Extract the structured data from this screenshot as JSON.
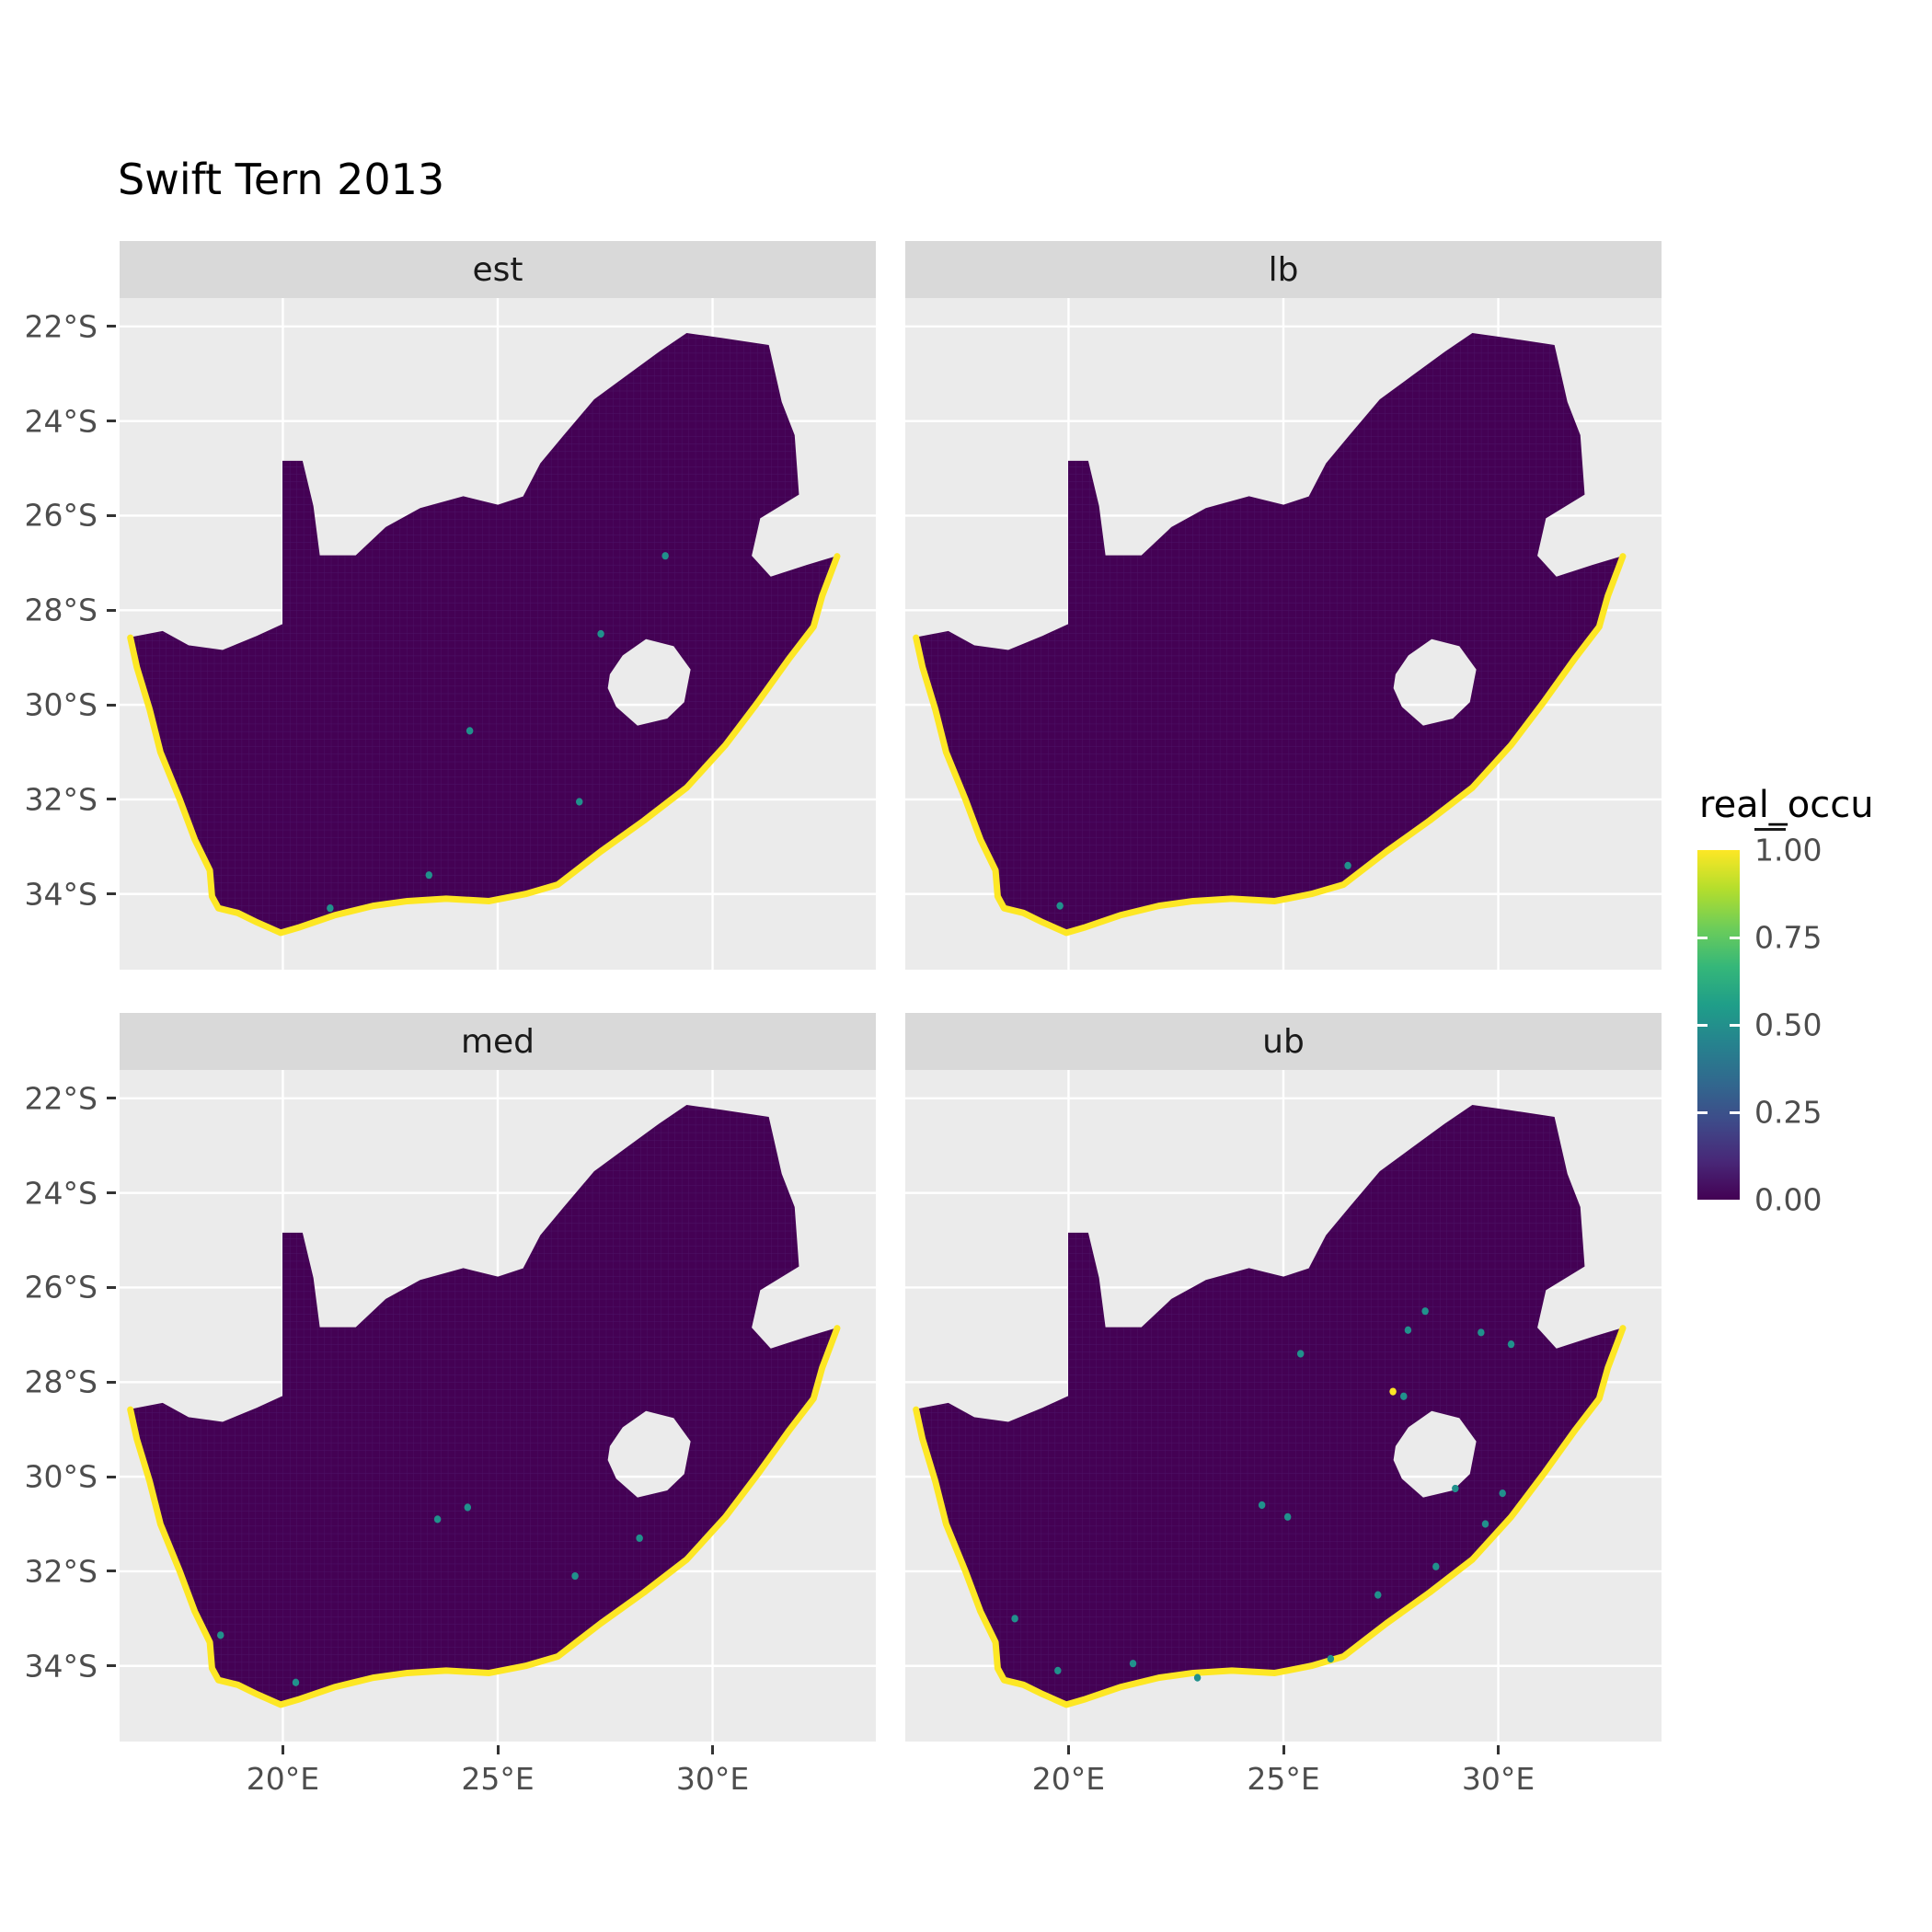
{
  "title": "Swift Tern 2013",
  "facets": [
    {
      "label": "est"
    },
    {
      "label": "lb"
    },
    {
      "label": "med"
    },
    {
      "label": "ub"
    }
  ],
  "axes": {
    "x_ticks": [
      {
        "value": 20,
        "label": "20°E"
      },
      {
        "value": 25,
        "label": "25°E"
      },
      {
        "value": 30,
        "label": "30°E"
      }
    ],
    "y_ticks": [
      {
        "value": 22,
        "label": "22°S"
      },
      {
        "value": 24,
        "label": "24°S"
      },
      {
        "value": 26,
        "label": "26°S"
      },
      {
        "value": 28,
        "label": "28°S"
      },
      {
        "value": 30,
        "label": "30°S"
      },
      {
        "value": 32,
        "label": "32°S"
      },
      {
        "value": 34,
        "label": "34°S"
      }
    ]
  },
  "legend": {
    "title": "real_occu",
    "breaks": [
      {
        "value": 1.0,
        "label": "1.00"
      },
      {
        "value": 0.75,
        "label": "0.75"
      },
      {
        "value": 0.5,
        "label": "0.50"
      },
      {
        "value": 0.25,
        "label": "0.25"
      },
      {
        "value": 0.0,
        "label": "0.00"
      }
    ]
  },
  "colors": {
    "low": "#440154",
    "mid": "#21918c",
    "high": "#fde725",
    "panel_bg": "#ebebeb",
    "strip_bg": "#d9d9d9",
    "grid": "#ffffff",
    "raster_line": "#4c1467",
    "speckle": "#21918c",
    "viridis_stops": [
      "#fde725",
      "#b4de2c",
      "#6dcd59",
      "#35b779",
      "#1f9e89",
      "#26828e",
      "#31688e",
      "#3e4a89",
      "#482878",
      "#440154"
    ]
  },
  "chart_data": {
    "type": "heatmap",
    "subtype": "faceted raster occupancy map (ggplot2 facet_wrap, viridis fill)",
    "title": "Swift Tern 2013",
    "region": "South Africa (with Lesotho hole and eSwatini notch)",
    "facets": [
      "est",
      "lb",
      "med",
      "ub"
    ],
    "fill_variable": "real_occu",
    "fill_range": [
      0,
      1
    ],
    "legend_breaks": [
      0,
      0.25,
      0.5,
      0.75,
      1
    ],
    "palette": "viridis",
    "x_axis": {
      "ticks_deg_E": [
        20,
        25,
        30
      ]
    },
    "y_axis": {
      "ticks_deg_S": [
        22,
        24,
        26,
        28,
        30,
        32,
        34
      ]
    },
    "lon_range_e": [
      16.2,
      33.8
    ],
    "lat_range_s": [
      21.4,
      35.6
    ],
    "summary": "All four facets show the same South Africa raster: interior cells ≈ 0.00 (dark purple), coastal cells ≈ 1.00 (yellow band along the entire coastline), with sparse intermediate (teal) cells; the ub facet shows the most nonzero inland cells, lb the fewest.",
    "outline_lon_latS": [
      [
        16.45,
        28.58
      ],
      [
        17.2,
        28.45
      ],
      [
        17.8,
        28.75
      ],
      [
        18.6,
        28.85
      ],
      [
        19.4,
        28.55
      ],
      [
        20.0,
        28.3
      ],
      [
        20.0,
        24.85
      ],
      [
        20.45,
        24.85
      ],
      [
        20.7,
        25.8
      ],
      [
        20.85,
        26.85
      ],
      [
        21.7,
        26.85
      ],
      [
        22.4,
        26.25
      ],
      [
        23.2,
        25.85
      ],
      [
        24.2,
        25.6
      ],
      [
        25.0,
        25.78
      ],
      [
        25.6,
        25.6
      ],
      [
        26.0,
        24.9
      ],
      [
        26.55,
        24.3
      ],
      [
        27.25,
        23.55
      ],
      [
        28.0,
        23.05
      ],
      [
        28.75,
        22.55
      ],
      [
        29.4,
        22.15
      ],
      [
        30.2,
        22.25
      ],
      [
        31.3,
        22.4
      ],
      [
        31.6,
        23.6
      ],
      [
        31.9,
        24.3
      ],
      [
        32.0,
        25.55
      ],
      [
        31.1,
        26.05
      ],
      [
        30.9,
        26.85
      ],
      [
        31.35,
        27.3
      ],
      [
        32.2,
        27.05
      ],
      [
        32.9,
        26.86
      ],
      [
        32.55,
        27.7
      ],
      [
        32.35,
        28.35
      ],
      [
        31.8,
        29.0
      ],
      [
        31.05,
        29.95
      ],
      [
        30.3,
        30.85
      ],
      [
        29.4,
        31.75
      ],
      [
        28.4,
        32.45
      ],
      [
        27.4,
        33.1
      ],
      [
        26.4,
        33.8
      ],
      [
        25.65,
        34.0
      ],
      [
        24.8,
        34.15
      ],
      [
        23.8,
        34.1
      ],
      [
        22.9,
        34.15
      ],
      [
        22.1,
        34.25
      ],
      [
        21.2,
        34.45
      ],
      [
        20.4,
        34.7
      ],
      [
        19.95,
        34.82
      ],
      [
        19.4,
        34.6
      ],
      [
        18.95,
        34.4
      ],
      [
        18.5,
        34.3
      ],
      [
        18.35,
        34.05
      ],
      [
        18.3,
        33.5
      ],
      [
        17.95,
        32.85
      ],
      [
        17.6,
        32.0
      ],
      [
        17.15,
        31.0
      ],
      [
        16.9,
        30.1
      ],
      [
        16.6,
        29.2
      ],
      [
        16.45,
        28.58
      ]
    ],
    "lesotho_hole_lon_latS": [
      [
        27.6,
        29.35
      ],
      [
        27.9,
        28.95
      ],
      [
        28.45,
        28.6
      ],
      [
        29.1,
        28.75
      ],
      [
        29.5,
        29.25
      ],
      [
        29.35,
        29.95
      ],
      [
        28.95,
        30.3
      ],
      [
        28.25,
        30.45
      ],
      [
        27.75,
        30.05
      ],
      [
        27.55,
        29.65
      ]
    ],
    "coastline_lon_latS": [
      [
        16.45,
        28.58
      ],
      [
        16.6,
        29.2
      ],
      [
        16.9,
        30.1
      ],
      [
        17.15,
        31.0
      ],
      [
        17.6,
        32.0
      ],
      [
        17.95,
        32.85
      ],
      [
        18.3,
        33.5
      ],
      [
        18.35,
        34.05
      ],
      [
        18.5,
        34.3
      ],
      [
        18.95,
        34.4
      ],
      [
        19.4,
        34.6
      ],
      [
        19.95,
        34.82
      ],
      [
        20.4,
        34.7
      ],
      [
        21.2,
        34.45
      ],
      [
        22.1,
        34.25
      ],
      [
        22.9,
        34.15
      ],
      [
        23.8,
        34.1
      ],
      [
        24.8,
        34.15
      ],
      [
        25.65,
        34.0
      ],
      [
        26.4,
        33.8
      ],
      [
        27.4,
        33.1
      ],
      [
        28.4,
        32.45
      ],
      [
        29.4,
        31.75
      ],
      [
        30.3,
        30.85
      ],
      [
        31.05,
        29.95
      ],
      [
        31.8,
        29.0
      ],
      [
        32.35,
        28.35
      ],
      [
        32.55,
        27.7
      ],
      [
        32.9,
        26.86
      ]
    ],
    "speckles": {
      "est": [
        [
          28.9,
          26.85
        ],
        [
          27.4,
          28.5
        ],
        [
          24.35,
          30.55
        ],
        [
          26.9,
          32.05
        ],
        [
          21.1,
          34.3
        ],
        [
          23.4,
          33.6
        ]
      ],
      "lb": [
        [
          19.8,
          34.25
        ],
        [
          26.5,
          33.4
        ]
      ],
      "med": [
        [
          24.3,
          30.65
        ],
        [
          23.6,
          30.9
        ],
        [
          26.8,
          32.1
        ],
        [
          20.3,
          34.35
        ],
        [
          18.55,
          33.35
        ],
        [
          28.3,
          31.3
        ]
      ],
      "ub": [
        [
          27.9,
          26.9
        ],
        [
          29.6,
          26.95
        ],
        [
          25.4,
          27.4
        ],
        [
          27.8,
          28.3
        ],
        [
          24.5,
          30.6
        ],
        [
          25.1,
          30.85
        ],
        [
          29.0,
          30.25
        ],
        [
          29.7,
          31.0
        ],
        [
          28.55,
          31.9
        ],
        [
          27.2,
          32.5
        ],
        [
          21.5,
          33.95
        ],
        [
          19.75,
          34.1
        ],
        [
          23.0,
          34.25
        ],
        [
          26.1,
          33.85
        ],
        [
          30.1,
          30.35
        ],
        [
          18.75,
          33.0
        ],
        [
          28.3,
          26.5
        ],
        [
          30.3,
          27.2
        ]
      ]
    },
    "speckles_yellow": {
      "est": [],
      "lb": [],
      "med": [],
      "ub": [
        [
          27.55,
          28.2
        ]
      ]
    }
  }
}
